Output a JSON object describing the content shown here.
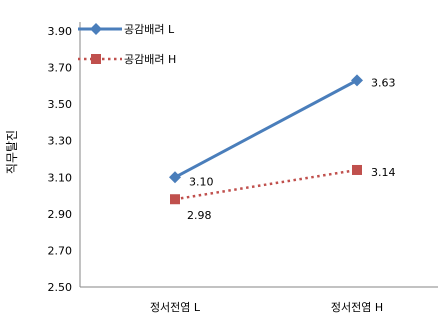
{
  "chart_data": {
    "type": "line",
    "title": "",
    "xlabel": "",
    "ylabel": "직무탈진",
    "categories": [
      "정서전염 L",
      "정서전염 H"
    ],
    "ylim": [
      2.5,
      3.9
    ],
    "yticks": [
      "2.50",
      "2.70",
      "2.90",
      "3.10",
      "3.30",
      "3.50",
      "3.70",
      "3.90"
    ],
    "legend_position": "top-left",
    "grid": false,
    "series": [
      {
        "name": "공감배려 L",
        "values": [
          3.1,
          3.63
        ],
        "labels": [
          "3.10",
          "3.63"
        ],
        "color": "#4a7ebb",
        "line_style": "solid",
        "marker": "diamond"
      },
      {
        "name": "공감배려 H",
        "values": [
          2.98,
          3.14
        ],
        "labels": [
          "2.98",
          "3.14"
        ],
        "color": "#c0504d",
        "line_style": "dotted",
        "marker": "square"
      }
    ]
  }
}
